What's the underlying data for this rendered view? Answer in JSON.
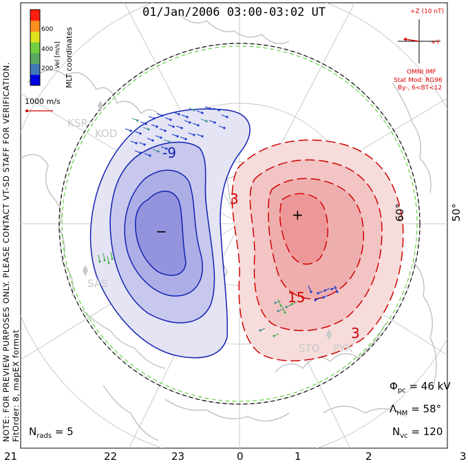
{
  "title": "01/Jan/2006 03:00-03:02 UT",
  "mlt_labels": [
    "21",
    "22",
    "23",
    "0",
    "1",
    "2",
    "3"
  ],
  "lat_labels": [
    "60°",
    "50°"
  ],
  "colorbar": {
    "title": "Vel [m/s]",
    "ticks": [
      "200",
      "400",
      "600"
    ],
    "colors": [
      "#0000e0",
      "#3f78b8",
      "#5aa860",
      "#70d040",
      "#e0e020",
      "#ff9020",
      "#ff2010"
    ]
  },
  "mlt_coordinates": "MLT coordinates",
  "reference_vector": "1000 m/s",
  "imf": {
    "label_z": "+Z (10 nT)",
    "label_y": "+Y",
    "source": "OMNI IMF",
    "stat_mod": "Stat Mod: RG96",
    "condition": "By-, 6<BT<12"
  },
  "note_line1": "NOTE: FOR PREVIEW PURPOSES ONLY. PLEASE CONTACT VT-SD STAFF FOR VERIFICATION.",
  "note_line2": "FitOrder: 8, mapEX format",
  "radars": [
    "KSR",
    "KOD",
    "SAS",
    "STO",
    "PYK"
  ],
  "contour_labels": {
    "neg_9": "-9",
    "pos_3": "3",
    "pos_15": "15",
    "pos_3b": "3",
    "minus": "−",
    "plus": "+"
  },
  "stats": {
    "phi_symbol": "Φ",
    "phi_sub": "pc",
    "phi_value": " = 46 kV",
    "lambda_symbol": "Λ",
    "lambda_sub": "HM",
    "lambda_value": " = 58°",
    "nvc_symbol": "N",
    "nvc_sub": "vc",
    "nvc_value": " = 120",
    "nrads_symbol": "N",
    "nrads_sub": "rads",
    "nrads_value": " = 5"
  },
  "colors": {
    "negative_line": "#1020b0",
    "positive_line": "#d00000",
    "hmb": "#60d040",
    "coast": "#c0c0c0",
    "grid": "#c8c8c8"
  }
}
